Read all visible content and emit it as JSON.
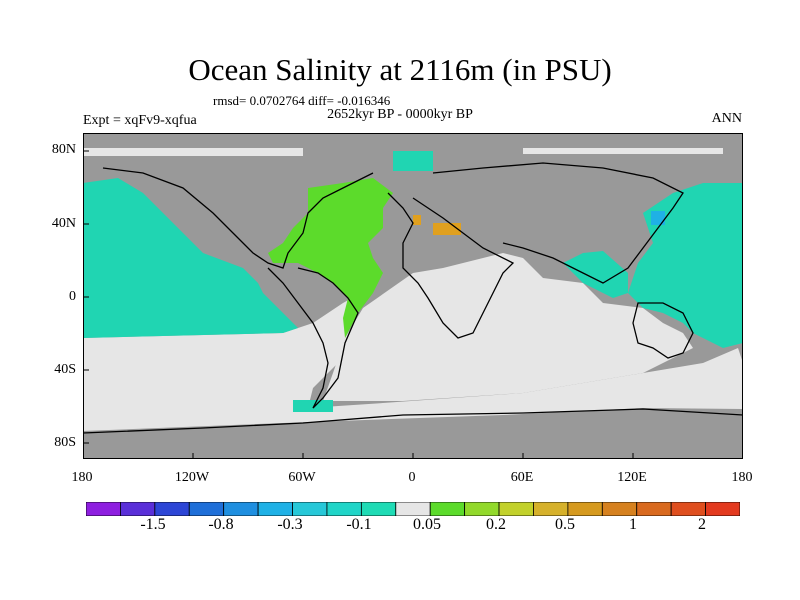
{
  "title": "Ocean Salinity at 2116m (in PSU)",
  "stats": "rmsd= 0.0702764 diff= -0.016346",
  "period": "2652kyr BP - 0000kyr BP",
  "expt": "Expt = xqFv9-xqfua",
  "season": "ANN",
  "lat_ticks": [
    "80N",
    "40N",
    "0",
    "40S",
    "80S"
  ],
  "lon_ticks": [
    "180",
    "120W",
    "60W",
    "0",
    "60E",
    "120E",
    "180"
  ],
  "colorbar": {
    "colors": [
      "#8e1fe0",
      "#5a2fd8",
      "#2d46d6",
      "#1f6fd8",
      "#1f8fe0",
      "#1fb1e6",
      "#27c8d8",
      "#20d5c8",
      "#1fdbb5",
      "#e6e6e6",
      "#5cdb2b",
      "#92d92b",
      "#c2d12b",
      "#d6b12b",
      "#d69a1f",
      "#d6811f",
      "#d96a1f",
      "#df4f1f",
      "#e33a1f"
    ],
    "labels": [
      "-1.5",
      "-0.8",
      "-0.3",
      "-0.1",
      "0.05",
      "0.2",
      "0.5",
      "1",
      "2"
    ]
  },
  "map_colors": {
    "land": "#999999",
    "near_zero": "#e6e6e6",
    "fresher": "#20d5b2",
    "saltier": "#5cdb2b",
    "much_saltier": "#e0a01f",
    "cold_blue": "#1fb1e6"
  }
}
